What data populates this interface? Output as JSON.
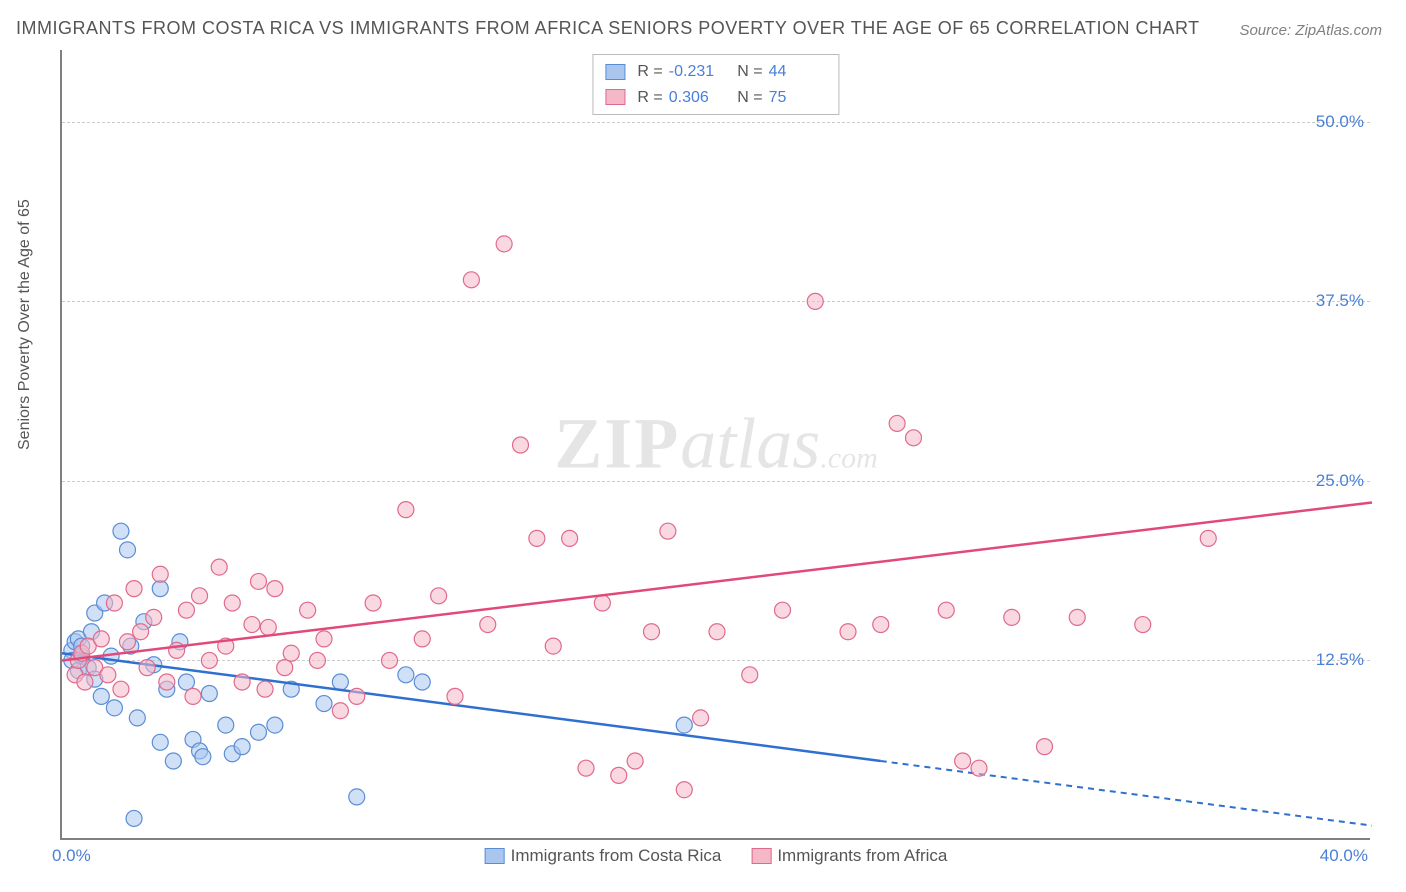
{
  "title": "IMMIGRANTS FROM COSTA RICA VS IMMIGRANTS FROM AFRICA SENIORS POVERTY OVER THE AGE OF 65 CORRELATION CHART",
  "source_label": "Source: ZipAtlas.com",
  "watermark": {
    "zip": "ZIP",
    "atlas": "atlas",
    "com": ".com"
  },
  "y_axis_label": "Seniors Poverty Over the Age of 65",
  "chart": {
    "type": "scatter",
    "background_color": "#ffffff",
    "grid_color": "#cccccc",
    "axis_color": "#808080",
    "tick_label_color": "#4a7fd8",
    "xlim": [
      0,
      40
    ],
    "ylim": [
      0,
      55
    ],
    "xticks": [
      {
        "v": 0,
        "label": "0.0%",
        "align": "left"
      },
      {
        "v": 40,
        "label": "40.0%",
        "align": "right"
      }
    ],
    "yticks": [
      {
        "v": 12.5,
        "label": "12.5%"
      },
      {
        "v": 25.0,
        "label": "25.0%"
      },
      {
        "v": 37.5,
        "label": "37.5%"
      },
      {
        "v": 50.0,
        "label": "50.0%"
      }
    ],
    "series": [
      {
        "name": "Immigrants from Costa Rica",
        "fill_color": "#a9c7ee",
        "stroke_color": "#5b8dd6",
        "fill_opacity": 0.55,
        "line_color": "#2f6fd0",
        "marker_radius": 8,
        "R": "-0.231",
        "N": "44",
        "trend": {
          "x1": 0,
          "y1": 13.0,
          "x2": 25,
          "y2": 5.5,
          "dash_to_x": 40,
          "dash_to_y": 1.0
        },
        "points": [
          [
            0.3,
            13.2
          ],
          [
            0.3,
            12.5
          ],
          [
            0.4,
            13.8
          ],
          [
            0.5,
            11.8
          ],
          [
            0.5,
            14.0
          ],
          [
            0.6,
            12.8
          ],
          [
            0.6,
            13.5
          ],
          [
            0.8,
            12.0
          ],
          [
            0.9,
            14.5
          ],
          [
            1.0,
            11.2
          ],
          [
            1.0,
            15.8
          ],
          [
            1.2,
            10.0
          ],
          [
            1.3,
            16.5
          ],
          [
            1.5,
            12.8
          ],
          [
            1.6,
            9.2
          ],
          [
            1.8,
            21.5
          ],
          [
            2.0,
            20.2
          ],
          [
            2.1,
            13.5
          ],
          [
            2.3,
            8.5
          ],
          [
            2.5,
            15.2
          ],
          [
            2.8,
            12.2
          ],
          [
            3.0,
            6.8
          ],
          [
            3.0,
            17.5
          ],
          [
            3.2,
            10.5
          ],
          [
            3.4,
            5.5
          ],
          [
            3.6,
            13.8
          ],
          [
            3.8,
            11.0
          ],
          [
            4.0,
            7.0
          ],
          [
            4.2,
            6.2
          ],
          [
            4.3,
            5.8
          ],
          [
            4.5,
            10.2
          ],
          [
            5.0,
            8.0
          ],
          [
            5.2,
            6.0
          ],
          [
            2.2,
            1.5
          ],
          [
            5.5,
            6.5
          ],
          [
            6.0,
            7.5
          ],
          [
            6.5,
            8.0
          ],
          [
            7.0,
            10.5
          ],
          [
            8.0,
            9.5
          ],
          [
            8.5,
            11.0
          ],
          [
            9.0,
            3.0
          ],
          [
            11.0,
            11.0
          ],
          [
            19.0,
            8.0
          ],
          [
            10.5,
            11.5
          ]
        ]
      },
      {
        "name": "Immigrants from Africa",
        "fill_color": "#f5b8c8",
        "stroke_color": "#e06a8c",
        "fill_opacity": 0.55,
        "line_color": "#e14a78",
        "marker_radius": 8,
        "R": "0.306",
        "N": "75",
        "trend": {
          "x1": 0,
          "y1": 12.5,
          "x2": 40,
          "y2": 23.5
        },
        "points": [
          [
            0.4,
            11.5
          ],
          [
            0.5,
            12.5
          ],
          [
            0.6,
            13.0
          ],
          [
            0.7,
            11.0
          ],
          [
            0.8,
            13.5
          ],
          [
            1.0,
            12.0
          ],
          [
            1.2,
            14.0
          ],
          [
            1.4,
            11.5
          ],
          [
            1.6,
            16.5
          ],
          [
            1.8,
            10.5
          ],
          [
            2.0,
            13.8
          ],
          [
            2.2,
            17.5
          ],
          [
            2.4,
            14.5
          ],
          [
            2.6,
            12.0
          ],
          [
            2.8,
            15.5
          ],
          [
            3.0,
            18.5
          ],
          [
            3.2,
            11.0
          ],
          [
            3.5,
            13.2
          ],
          [
            3.8,
            16.0
          ],
          [
            4.0,
            10.0
          ],
          [
            4.2,
            17.0
          ],
          [
            4.5,
            12.5
          ],
          [
            4.8,
            19.0
          ],
          [
            5.0,
            13.5
          ],
          [
            5.2,
            16.5
          ],
          [
            5.5,
            11.0
          ],
          [
            5.8,
            15.0
          ],
          [
            6.0,
            18.0
          ],
          [
            6.2,
            10.5
          ],
          [
            6.5,
            17.5
          ],
          [
            6.8,
            12.0
          ],
          [
            7.0,
            13.0
          ],
          [
            7.5,
            16.0
          ],
          [
            8.0,
            14.0
          ],
          [
            8.5,
            9.0
          ],
          [
            9.0,
            10.0
          ],
          [
            9.5,
            16.5
          ],
          [
            10.0,
            12.5
          ],
          [
            10.5,
            23.0
          ],
          [
            11.0,
            14.0
          ],
          [
            11.5,
            17.0
          ],
          [
            12.0,
            10.0
          ],
          [
            12.5,
            39.0
          ],
          [
            13.0,
            15.0
          ],
          [
            13.5,
            41.5
          ],
          [
            14.0,
            27.5
          ],
          [
            14.5,
            21.0
          ],
          [
            15.0,
            13.5
          ],
          [
            15.5,
            21.0
          ],
          [
            16.0,
            5.0
          ],
          [
            16.5,
            16.5
          ],
          [
            17.0,
            4.5
          ],
          [
            17.5,
            5.5
          ],
          [
            18.0,
            14.5
          ],
          [
            18.5,
            21.5
          ],
          [
            19.0,
            3.5
          ],
          [
            19.5,
            8.5
          ],
          [
            20.0,
            14.5
          ],
          [
            21.0,
            11.5
          ],
          [
            22.0,
            16.0
          ],
          [
            23.0,
            37.5
          ],
          [
            24.0,
            14.5
          ],
          [
            25.0,
            15.0
          ],
          [
            25.5,
            29.0
          ],
          [
            26.0,
            28.0
          ],
          [
            27.0,
            16.0
          ],
          [
            28.0,
            5.0
          ],
          [
            29.0,
            15.5
          ],
          [
            30.0,
            6.5
          ],
          [
            31.0,
            15.5
          ],
          [
            33.0,
            15.0
          ],
          [
            35.0,
            21.0
          ],
          [
            27.5,
            5.5
          ],
          [
            7.8,
            12.5
          ],
          [
            6.3,
            14.8
          ]
        ]
      }
    ]
  }
}
